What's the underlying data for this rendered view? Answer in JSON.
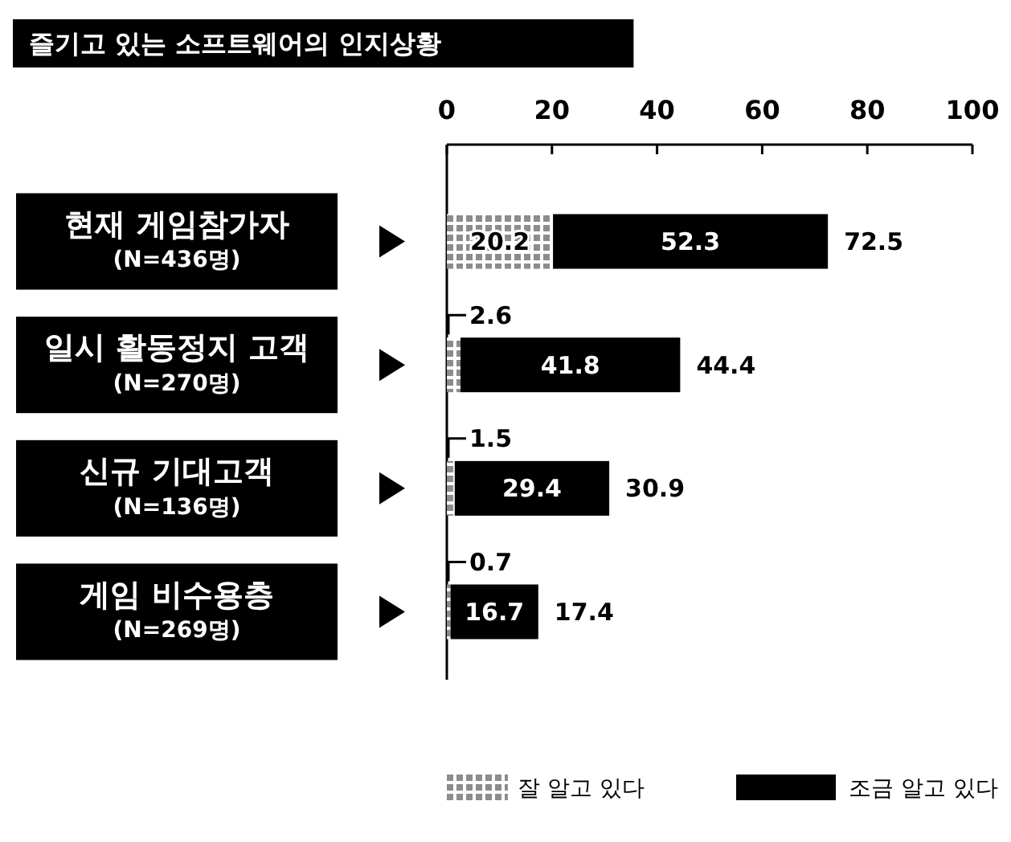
{
  "chart_data": {
    "type": "bar",
    "orientation": "horizontal",
    "stacked": true,
    "title": "즐기고 있는 소프트웨어의 인지상황",
    "categories": [
      "현재 게임참가자\n(N=436명)",
      "일시 활동정지 고객\n(N=270명)",
      "신규 기대고객\n(N=136명)",
      "게임 비수용층\n(N=269명)"
    ],
    "series": [
      {
        "name": "잘 알고 있다",
        "color": "#8c8c8c",
        "values": [
          20.2,
          2.6,
          1.5,
          0.7
        ],
        "value_labels": [
          "20.2",
          "2.6",
          "1.5",
          "0.7"
        ]
      },
      {
        "name": "조금 알고 있다",
        "color": "#000000",
        "values": [
          52.3,
          41.8,
          29.4,
          16.7
        ],
        "value_labels": [
          "52.3",
          "41.8",
          "29.4",
          "16.7"
        ]
      }
    ],
    "totals": [
      "72.5",
      "44.4",
      "30.9",
      "17.4"
    ],
    "xlim": [
      0,
      100
    ],
    "xticks": [
      0,
      20,
      40,
      60,
      80,
      100
    ],
    "grid": false,
    "legend": "bottom"
  }
}
